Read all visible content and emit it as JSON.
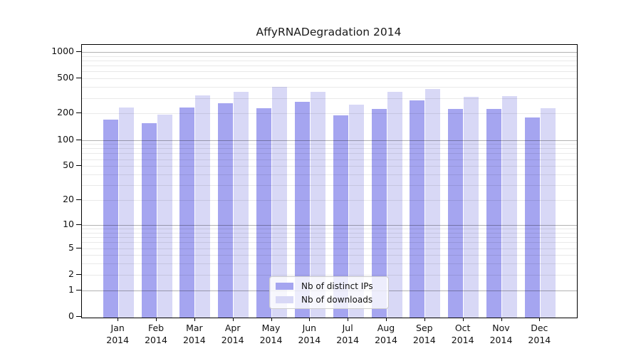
{
  "chart_data": {
    "type": "bar",
    "title": "AffyRNADegradation 2014",
    "xlabel": "",
    "ylabel": "",
    "categories": [
      "Jan",
      "Feb",
      "Mar",
      "Apr",
      "May",
      "Jun",
      "Jul",
      "Aug",
      "Sep",
      "Oct",
      "Nov",
      "Dec"
    ],
    "year_label": "2014",
    "series": [
      {
        "name": "Nb of distinct IPs",
        "color": "#a5a5f0",
        "values": [
          170,
          155,
          235,
          260,
          230,
          270,
          190,
          225,
          280,
          225,
          225,
          180
        ]
      },
      {
        "name": "Nb of downloads",
        "color": "#d8d8f6",
        "values": [
          235,
          195,
          320,
          350,
          400,
          355,
          250,
          350,
          380,
          310,
          315,
          230
        ]
      }
    ],
    "yscale": "log1p",
    "ylim": [
      0,
      1210
    ],
    "ytick_values": [
      0,
      1,
      2,
      5,
      10,
      20,
      50,
      100,
      200,
      500,
      1000
    ],
    "ytick_labels": [
      "0",
      "1",
      "2",
      "5",
      "10",
      "20",
      "50",
      "100",
      "200",
      "500",
      "1000"
    ],
    "grid": {
      "on": true,
      "minor": [
        2,
        3,
        4,
        5,
        6,
        7,
        8,
        9,
        20,
        30,
        40,
        50,
        60,
        70,
        80,
        90,
        200,
        300,
        400,
        500,
        600,
        700,
        800,
        900
      ],
      "major": [
        1,
        10,
        100,
        1000
      ]
    },
    "legend_position": "inside bottom-center"
  },
  "colors": {
    "bar_dark": "#a5a5f0",
    "bar_light": "#d8d8f6",
    "grid_minor": "rgba(0,0,0,0.085)",
    "grid_major": "rgba(0,0,0,0.30)",
    "axis": "#000000",
    "legend_border": "#cccccc",
    "text": "#111111"
  }
}
